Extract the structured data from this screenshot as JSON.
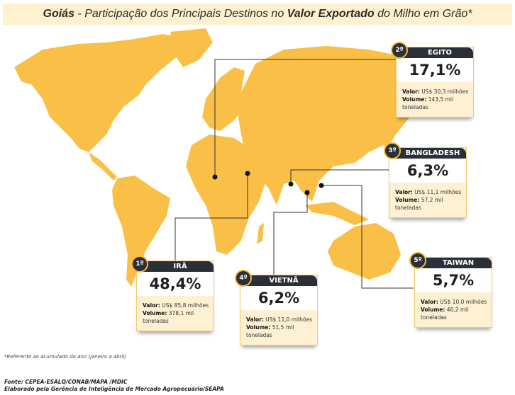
{
  "title": {
    "prefix": "Goiás",
    "middle1": " - Participação dos Principais Destinos no ",
    "bold2": "Valor Exportado",
    "suffix": " do Milho em Grão*"
  },
  "colors": {
    "land": "#f9bf47",
    "dark": "#2b2f38",
    "card_bg": "#fdf0d3"
  },
  "destinations": [
    {
      "rank": "1º",
      "country": "IRÃ",
      "share": "48,4%",
      "valor_label": "Valor:",
      "valor": "US$ 85,8 milhões",
      "volume_label": "Volume:",
      "volume": "378,1 mil toneladas"
    },
    {
      "rank": "2º",
      "country": "EGITO",
      "share": "17,1%",
      "valor_label": "Valor:",
      "valor": "US$ 30,3 milhões",
      "volume_label": "Volume:",
      "volume": "143,5 mil toneladas"
    },
    {
      "rank": "3º",
      "country": "BANGLADESH",
      "share": "6,3%",
      "valor_label": "Valor:",
      "valor": "US$ 11,1 milhões",
      "volume_label": "Volume:",
      "volume": "57,2 mil toneladas"
    },
    {
      "rank": "4º",
      "country": "VIETNÃ",
      "share": "6,2%",
      "valor_label": "Valor:",
      "valor": "US$ 11,0 milhões",
      "volume_label": "Volume:",
      "volume": "51,5 mil toneladas"
    },
    {
      "rank": "5º",
      "country": "TAIWAN",
      "share": "5,7%",
      "valor_label": "Valor:",
      "valor": "US$ 10,0 milhões",
      "volume_label": "Volume:",
      "volume": "46,2 mil toneladas"
    }
  ],
  "footnote": "*Referente ao acumulado do ano (janeiro a abril)",
  "source": "Fonte: CEPEA-ESALQ/CONAB/MAPA /MDIC",
  "prepared_by": "Elaborado pela Gerência de Inteligência de Mercado Agropecuário/SEAPA"
}
